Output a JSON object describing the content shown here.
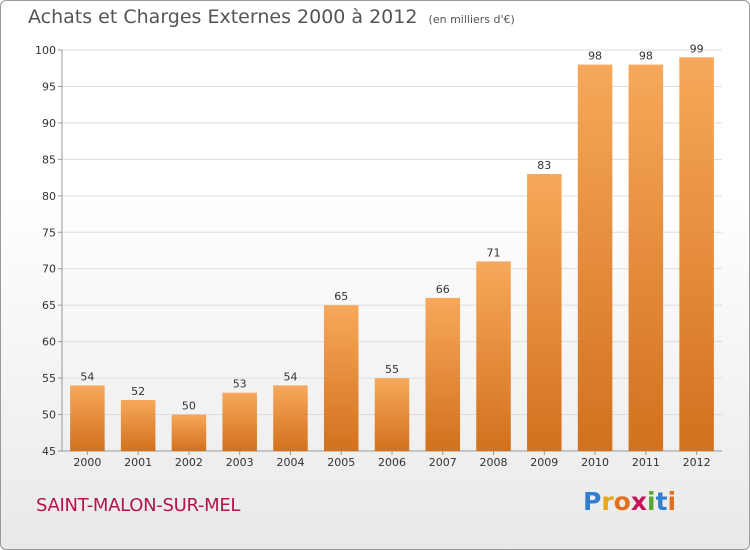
{
  "header": {
    "title": "Achats et Charges Externes 2000 à 2012",
    "subtitle": "(en milliers d'€)"
  },
  "footer": {
    "commune": "SAINT-MALON-SUR-MEL",
    "logo_letters": [
      "P",
      "r",
      "o",
      "x",
      "i",
      "t",
      "i"
    ],
    "logo_colors": [
      "#2f7fd0",
      "#e8a51a",
      "#e07020",
      "#c0185a",
      "#5aa832",
      "#2f7fd0",
      "#e07020"
    ]
  },
  "colors": {
    "bar_light": "#f7a85a",
    "bar_dark": "#d2711e",
    "grid": "#dddddd",
    "axis": "#999999"
  },
  "chart_data": {
    "type": "bar",
    "title": "Achats et Charges Externes 2000 à 2012",
    "subtitle": "(en milliers d'€)",
    "categories": [
      "2000",
      "2001",
      "2002",
      "2003",
      "2004",
      "2005",
      "2006",
      "2007",
      "2008",
      "2009",
      "2010",
      "2011",
      "2012"
    ],
    "values": [
      54,
      52,
      50,
      53,
      54,
      65,
      55,
      66,
      71,
      83,
      98,
      98,
      99
    ],
    "ylim": [
      45,
      100
    ],
    "yticks": [
      45,
      50,
      55,
      60,
      65,
      70,
      75,
      80,
      85,
      90,
      95,
      100
    ],
    "grid": true,
    "xlabel": "",
    "ylabel": ""
  }
}
